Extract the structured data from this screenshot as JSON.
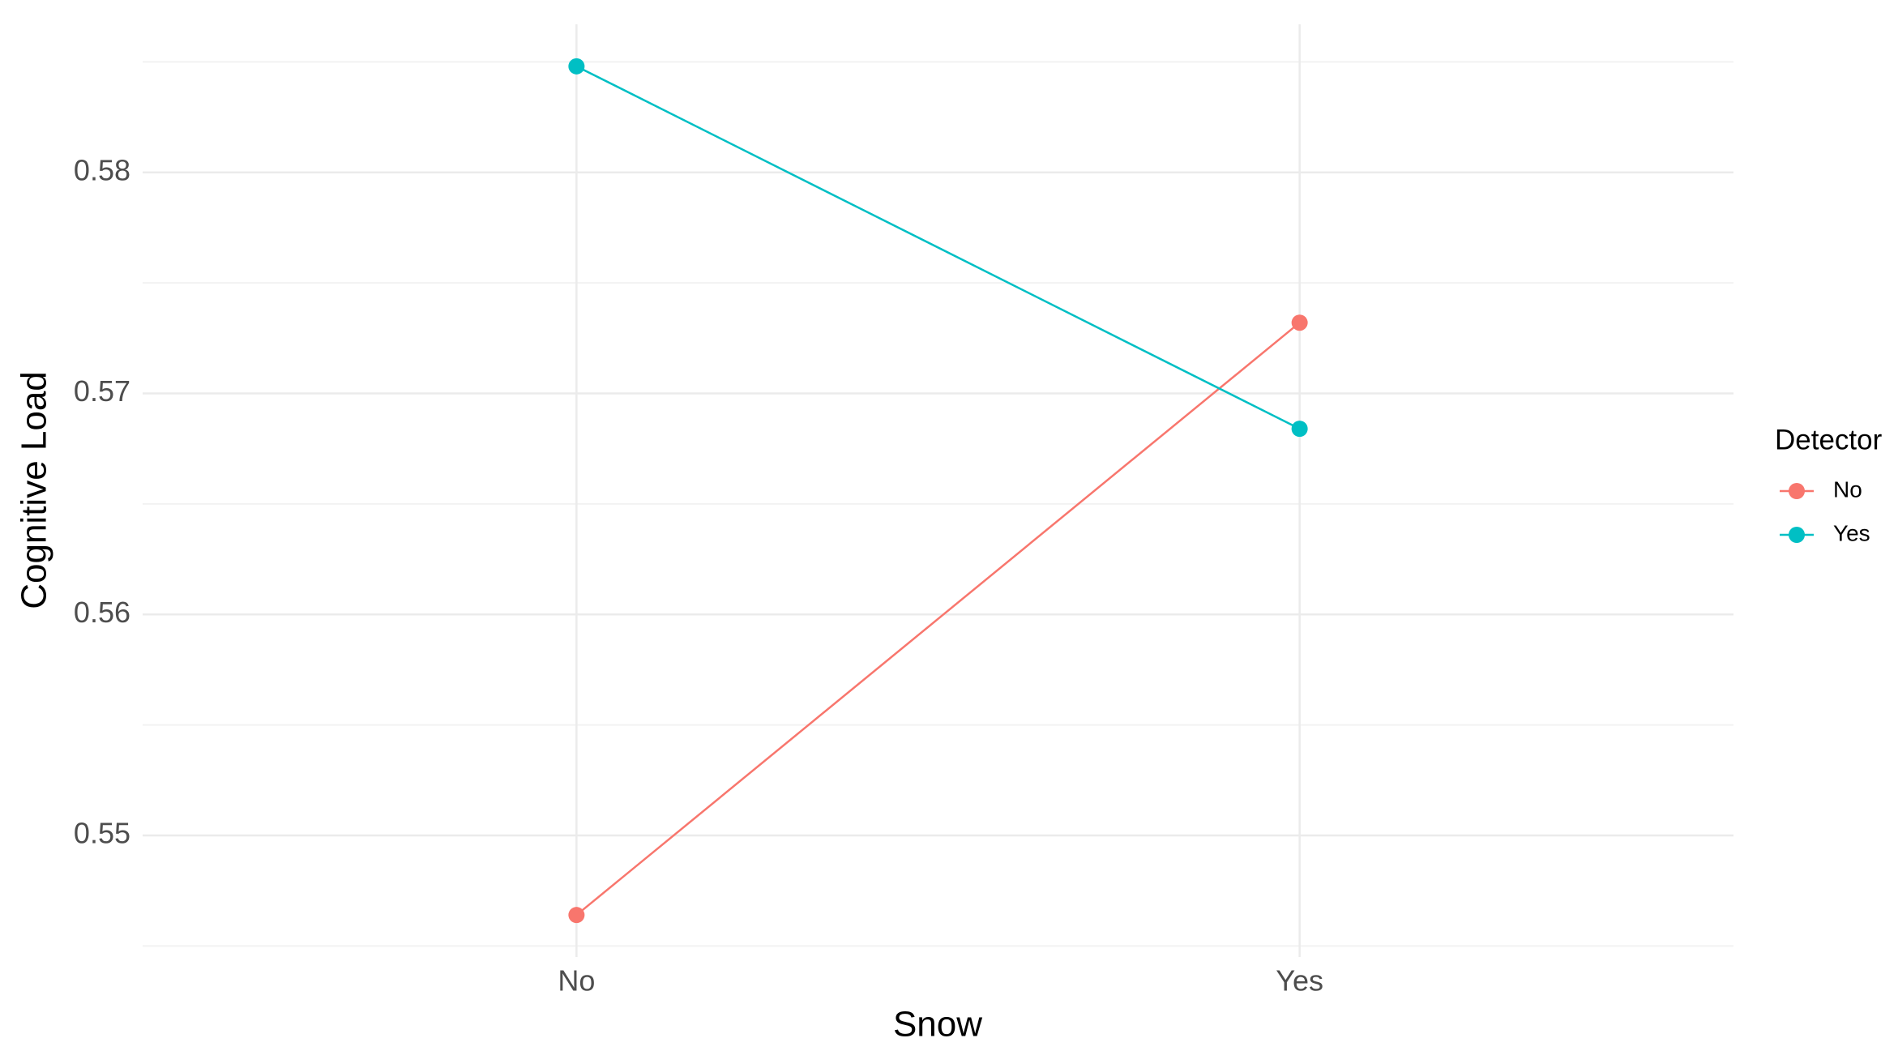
{
  "chart_data": {
    "type": "line",
    "x_label": "Snow",
    "y_label": "Cognitive Load",
    "categories": [
      "No",
      "Yes"
    ],
    "legend_title": "Detector",
    "legend_position": "right",
    "series": [
      {
        "name": "No",
        "color": "#F8766D",
        "values": [
          0.5464,
          0.5732
        ]
      },
      {
        "name": "Yes",
        "color": "#00BFC4",
        "values": [
          0.5848,
          0.5684
        ]
      }
    ],
    "ylim": [
      0.5445,
      0.5867
    ],
    "yticks": [
      0.55,
      0.56,
      0.57,
      0.58
    ],
    "yminor_ticks": [
      0.545,
      0.555,
      0.565,
      0.575,
      0.585
    ],
    "grid": true
  }
}
